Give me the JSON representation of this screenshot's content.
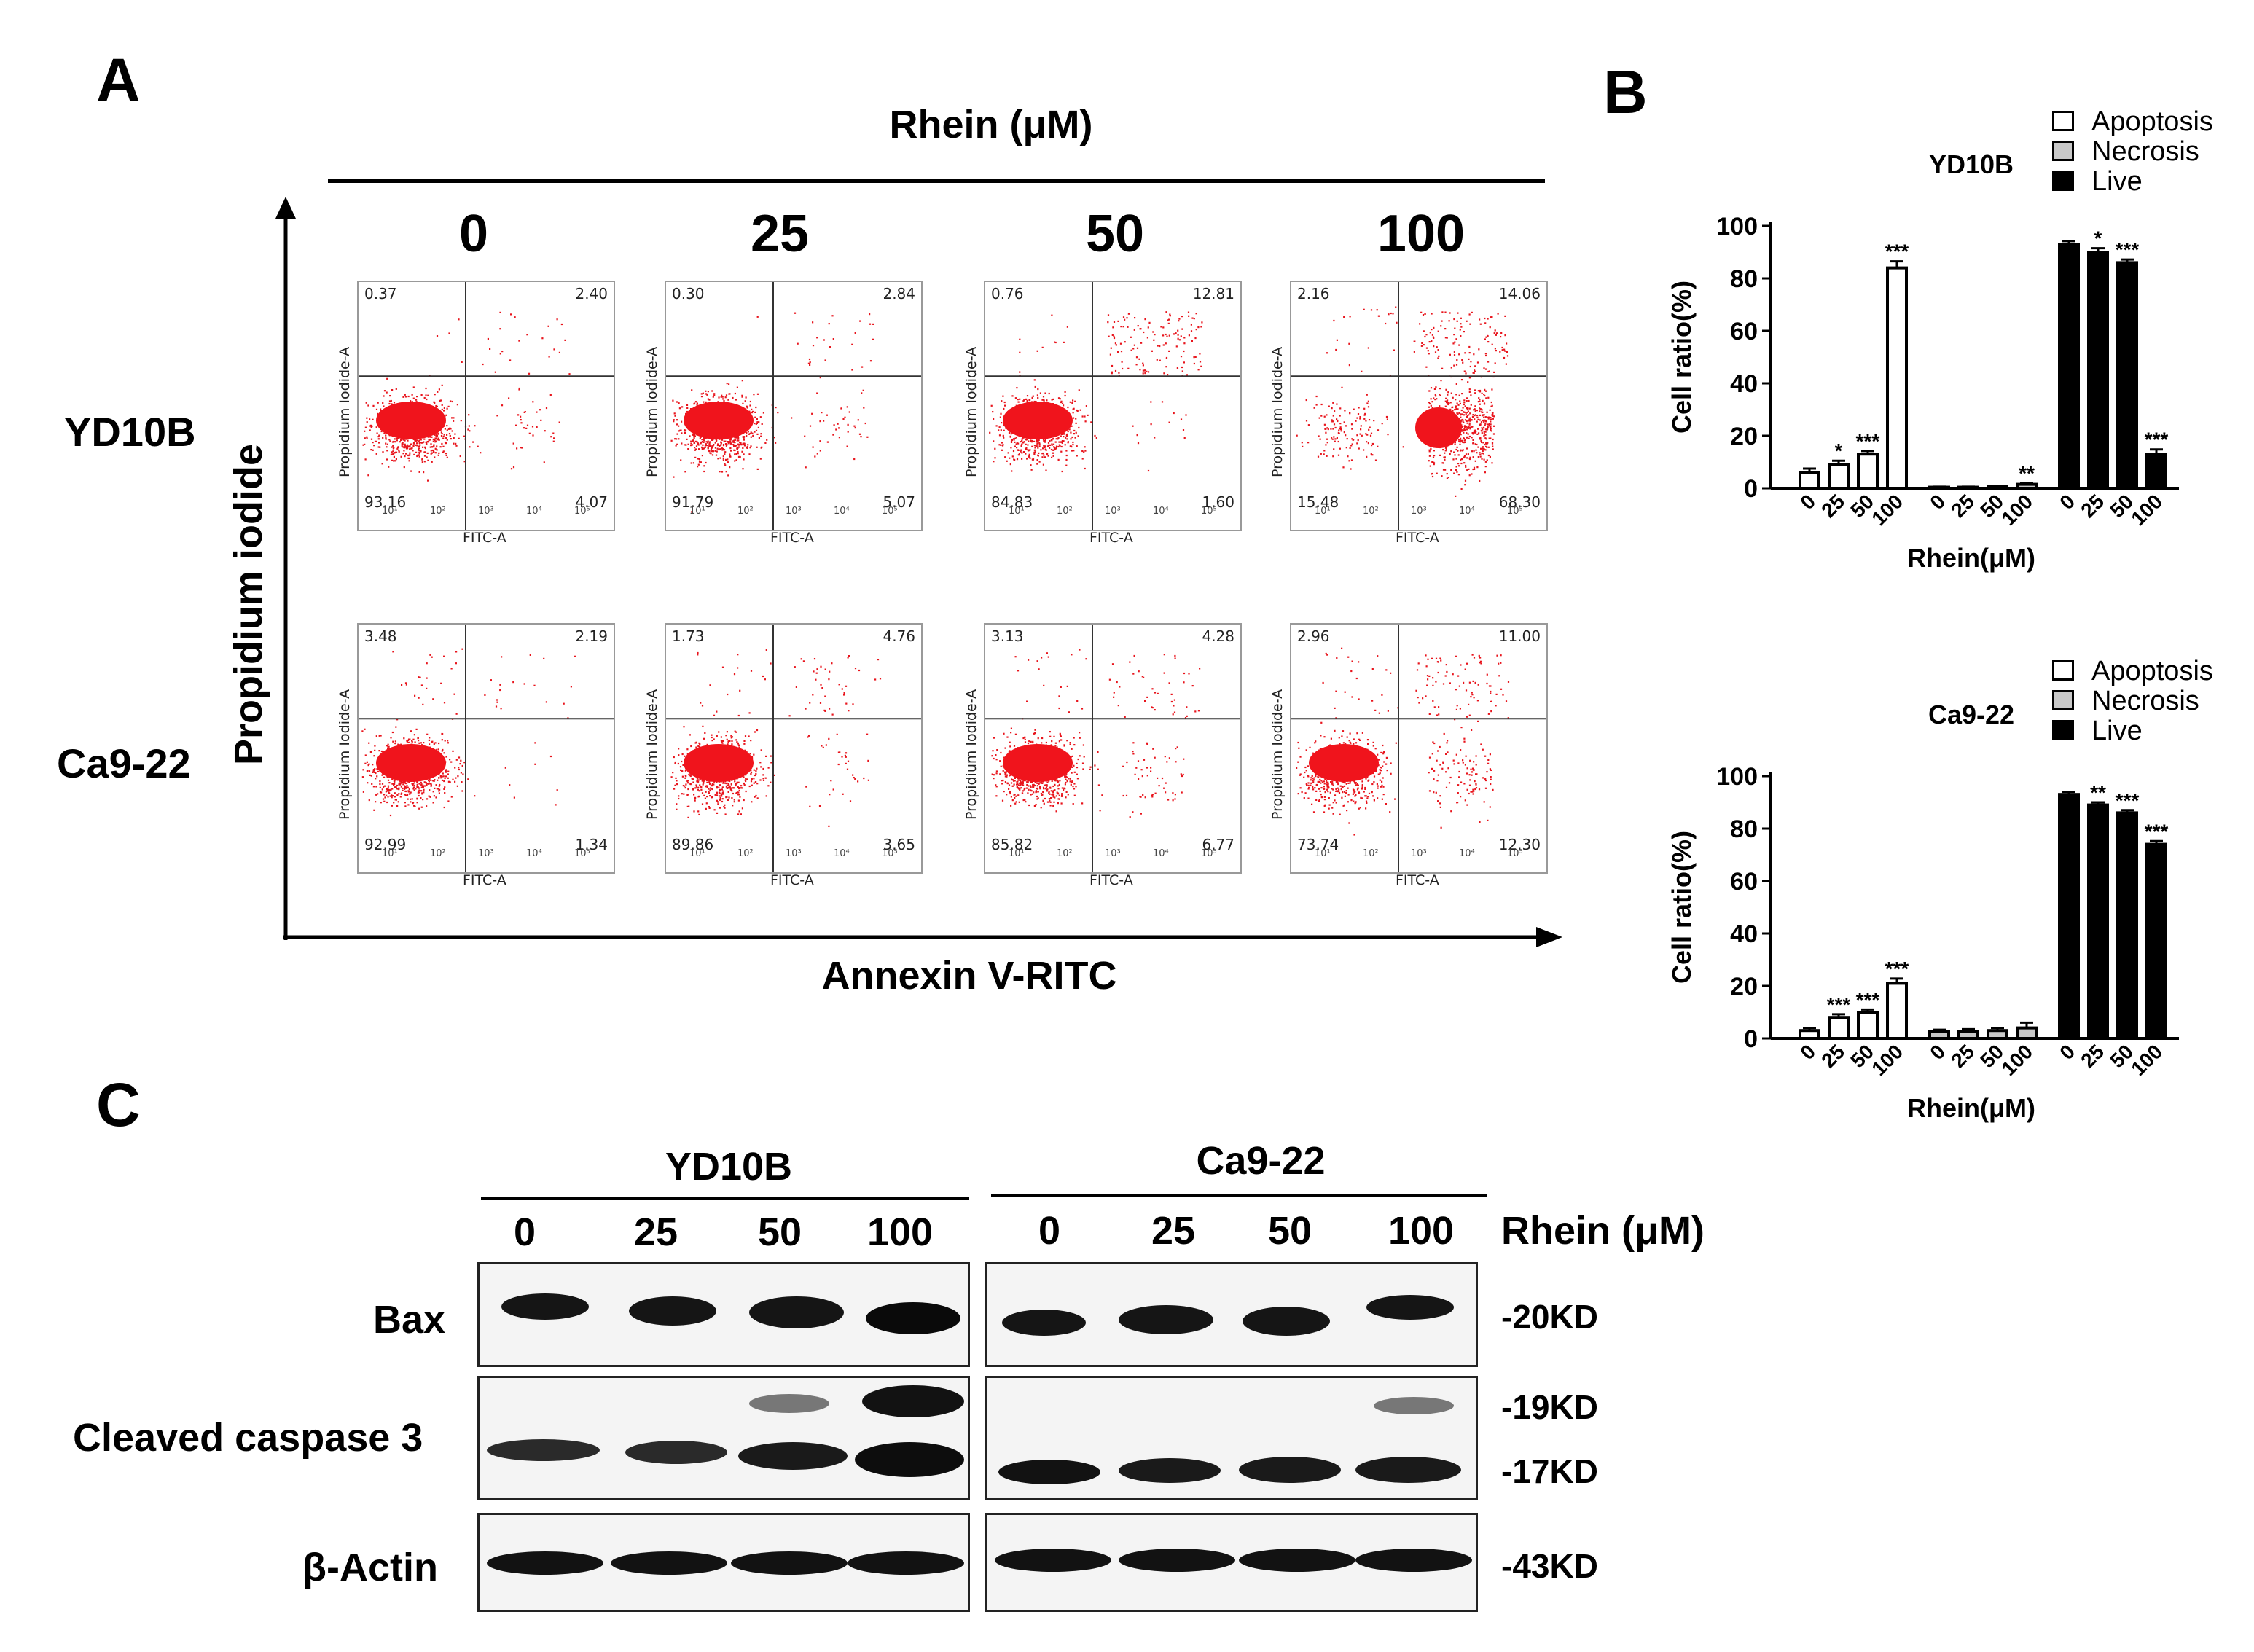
{
  "panel_a": {
    "letter": "A",
    "treatment_label": "Rhein (μM)",
    "doses": [
      "0",
      "25",
      "50",
      "100"
    ],
    "y_axis_label": "Propidium iodide",
    "x_axis_label": "Annexin V-RITC",
    "plot_x_label": "FITC-A",
    "plot_y_label": "Propidium Iodide-A",
    "rows": [
      {
        "cell_line": "YD10B",
        "plots": [
          {
            "ul": "0.37",
            "ur": "2.40",
            "ll": "93.16",
            "lr": "4.07"
          },
          {
            "ul": "0.30",
            "ur": "2.84",
            "ll": "91.79",
            "lr": "5.07"
          },
          {
            "ul": "0.76",
            "ur": "12.81",
            "ll": "84.83",
            "lr": "1.60"
          },
          {
            "ul": "2.16",
            "ur": "14.06",
            "ll": "15.48",
            "lr": "68.30"
          }
        ]
      },
      {
        "cell_line": "Ca9-22",
        "plots": [
          {
            "ul": "3.48",
            "ur": "2.19",
            "ll": "92.99",
            "lr": "1.34"
          },
          {
            "ul": "1.73",
            "ur": "4.76",
            "ll": "89.86",
            "lr": "3.65"
          },
          {
            "ul": "3.13",
            "ur": "4.28",
            "ll": "85.82",
            "lr": "6.77"
          },
          {
            "ul": "2.96",
            "ur": "11.00",
            "ll": "73.74",
            "lr": "12.30"
          }
        ]
      }
    ],
    "log_ticks": [
      "10¹",
      "10²",
      "10³",
      "10⁴",
      "10⁵"
    ]
  },
  "panel_b": {
    "letter": "B",
    "legend": [
      "Apoptosis",
      "Necrosis",
      "Live"
    ],
    "colors": {
      "apoptosis": "#ffffff",
      "necrosis": "#c8c8c8",
      "live": "#000000"
    }
  },
  "chart_data": [
    {
      "type": "bar",
      "title": "YD10B",
      "xlabel": "Rhein(μM)",
      "ylabel": "Cell ratio(%)",
      "ylim": [
        0,
        100
      ],
      "yticks": [
        "0",
        "20",
        "40",
        "60",
        "80",
        "100"
      ],
      "categories": [
        "0",
        "25",
        "50",
        "100"
      ],
      "series": [
        {
          "name": "Apoptosis",
          "values": [
            6,
            9,
            13,
            84
          ],
          "errors": [
            1.5,
            1.5,
            1.2,
            2.5
          ],
          "sig": [
            "",
            "*",
            "***",
            "***"
          ]
        },
        {
          "name": "Necrosis",
          "values": [
            0.4,
            0.4,
            0.6,
            1.5
          ],
          "errors": [
            0.2,
            0.2,
            0.2,
            0.5
          ],
          "sig": [
            "",
            "",
            "",
            "**"
          ]
        },
        {
          "name": "Live",
          "values": [
            93,
            90,
            86,
            13
          ],
          "errors": [
            1.2,
            1.5,
            1.2,
            1.8
          ],
          "sig": [
            "",
            "*",
            "***",
            "***"
          ]
        }
      ]
    },
    {
      "type": "bar",
      "title": "Ca9-22",
      "xlabel": "Rhein(μM)",
      "ylabel": "Cell ratio(%)",
      "ylim": [
        0,
        100
      ],
      "yticks": [
        "0",
        "20",
        "40",
        "60",
        "80",
        "100"
      ],
      "categories": [
        "0",
        "25",
        "50",
        "100"
      ],
      "series": [
        {
          "name": "Apoptosis",
          "values": [
            3,
            8,
            10,
            21
          ],
          "errors": [
            1,
            1.2,
            1,
            1.8
          ],
          "sig": [
            "",
            "***",
            "***",
            "***"
          ]
        },
        {
          "name": "Necrosis",
          "values": [
            2.5,
            2.5,
            3,
            4
          ],
          "errors": [
            0.8,
            1,
            1,
            2
          ],
          "sig": [
            "",
            "",
            "",
            ""
          ]
        },
        {
          "name": "Live",
          "values": [
            93,
            89,
            86,
            74
          ],
          "errors": [
            1,
            1,
            1,
            1.2
          ],
          "sig": [
            "",
            "**",
            "***",
            "***"
          ]
        }
      ]
    }
  ],
  "panel_c": {
    "letter": "C",
    "groups": [
      "YD10B",
      "Ca9-22"
    ],
    "doses": [
      "0",
      "25",
      "50",
      "100"
    ],
    "treatment_label": "Rhein (μM)",
    "blots": [
      {
        "protein": "Bax",
        "markers": [
          "-20KD"
        ]
      },
      {
        "protein": "Cleaved caspase 3",
        "markers": [
          "-19KD",
          "-17KD"
        ]
      },
      {
        "protein": "β-Actin",
        "markers": [
          "-43KD"
        ]
      }
    ]
  }
}
